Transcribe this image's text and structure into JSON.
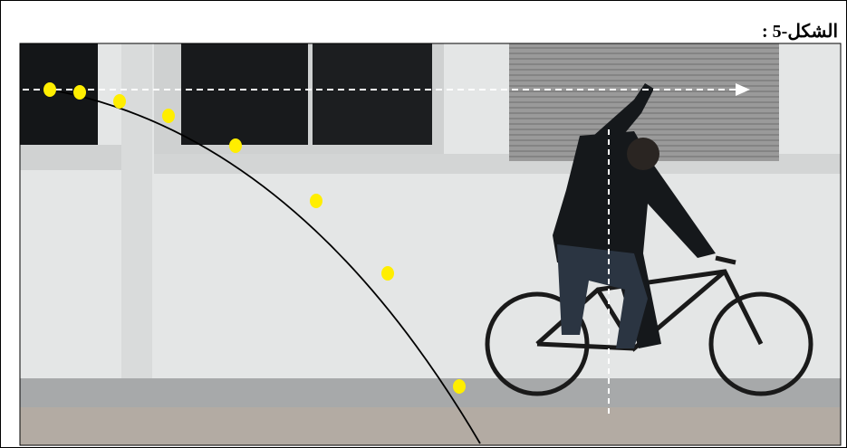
{
  "figure": {
    "caption": "الشكل-5 :"
  }
}
